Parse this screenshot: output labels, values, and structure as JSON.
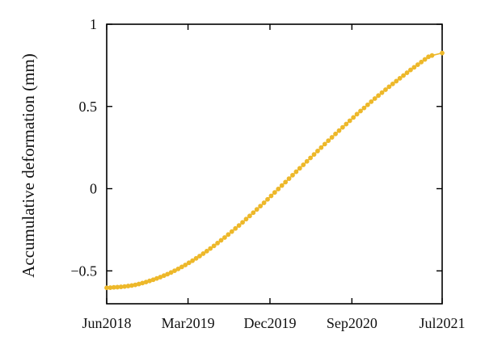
{
  "chart_data": {
    "type": "line",
    "title": "",
    "xlabel": "",
    "ylabel": "Accumulative deformation (mm)",
    "ylim": [
      -0.7,
      1.0
    ],
    "xlim": [
      "2018-06-01",
      "2021-07-01"
    ],
    "grid": false,
    "legend": "none",
    "marker": "circle",
    "x_tick_labels": [
      "Jun2018",
      "Mar2019",
      "Dec2019",
      "Sep2020",
      "Jul2021"
    ],
    "x_ticks": [
      "2018-06-01",
      "2019-03-01",
      "2019-12-01",
      "2020-09-01",
      "2021-07-01"
    ],
    "y_ticks": [
      -0.5,
      0,
      0.5,
      1
    ],
    "y_tick_labels": [
      "−0.5",
      "0",
      "0.5",
      "1"
    ],
    "colors": {
      "series": "#EDB82A",
      "axes": "#000000"
    },
    "series": [
      {
        "x": [
          "2018-06-01",
          "2018-06-13",
          "2018-06-25",
          "2018-07-07",
          "2018-07-19",
          "2018-07-31",
          "2018-08-12",
          "2018-08-24",
          "2018-09-05",
          "2018-09-17",
          "2018-09-29",
          "2018-10-11",
          "2018-10-23",
          "2018-11-04",
          "2018-11-16",
          "2018-11-28",
          "2018-12-10",
          "2018-12-22",
          "2019-01-03",
          "2019-01-15",
          "2019-01-27",
          "2019-02-08",
          "2019-02-20",
          "2019-03-04",
          "2019-03-16",
          "2019-03-28",
          "2019-04-09",
          "2019-04-21",
          "2019-05-03",
          "2019-05-15",
          "2019-05-27",
          "2019-06-08",
          "2019-06-20",
          "2019-07-02",
          "2019-07-14",
          "2019-07-26",
          "2019-08-07",
          "2019-08-19",
          "2019-08-31",
          "2019-09-12",
          "2019-09-24",
          "2019-10-06",
          "2019-10-18",
          "2019-10-30",
          "2019-11-11",
          "2019-11-23",
          "2019-12-05",
          "2019-12-17",
          "2019-12-29",
          "2020-01-10",
          "2020-01-22",
          "2020-02-03",
          "2020-02-15",
          "2020-02-27",
          "2020-03-10",
          "2020-03-22",
          "2020-04-03",
          "2020-04-15",
          "2020-04-27",
          "2020-05-09",
          "2020-05-21",
          "2020-06-02",
          "2020-06-14",
          "2020-06-26",
          "2020-07-08",
          "2020-07-20",
          "2020-08-01",
          "2020-08-13",
          "2020-08-25",
          "2020-09-06",
          "2020-09-18",
          "2020-09-30",
          "2020-10-12",
          "2020-10-24",
          "2020-11-05",
          "2020-11-17",
          "2020-11-29",
          "2020-12-11",
          "2020-12-23",
          "2021-01-04",
          "2021-01-16",
          "2021-01-28",
          "2021-02-09",
          "2021-02-21",
          "2021-03-05",
          "2021-03-17",
          "2021-03-29",
          "2021-04-10",
          "2021-04-22",
          "2021-05-04",
          "2021-05-16",
          "2021-05-28",
          "2021-07-01"
        ],
        "y": [
          -0.603,
          -0.602,
          -0.6,
          -0.599,
          -0.597,
          -0.595,
          -0.592,
          -0.589,
          -0.585,
          -0.58,
          -0.574,
          -0.568,
          -0.561,
          -0.554,
          -0.546,
          -0.538,
          -0.529,
          -0.52,
          -0.51,
          -0.499,
          -0.488,
          -0.476,
          -0.464,
          -0.451,
          -0.438,
          -0.424,
          -0.41,
          -0.395,
          -0.38,
          -0.364,
          -0.348,
          -0.331,
          -0.314,
          -0.297,
          -0.279,
          -0.261,
          -0.242,
          -0.224,
          -0.205,
          -0.185,
          -0.166,
          -0.146,
          -0.126,
          -0.106,
          -0.086,
          -0.065,
          -0.044,
          -0.023,
          -0.002,
          0.019,
          0.04,
          0.061,
          0.082,
          0.103,
          0.124,
          0.145,
          0.166,
          0.187,
          0.208,
          0.229,
          0.25,
          0.271,
          0.292,
          0.312,
          0.333,
          0.353,
          0.373,
          0.393,
          0.413,
          0.433,
          0.453,
          0.472,
          0.491,
          0.51,
          0.529,
          0.548,
          0.566,
          0.584,
          0.602,
          0.62,
          0.637,
          0.654,
          0.671,
          0.688,
          0.705,
          0.722,
          0.738,
          0.754,
          0.77,
          0.786,
          0.802,
          0.81,
          0.825
        ]
      }
    ]
  }
}
